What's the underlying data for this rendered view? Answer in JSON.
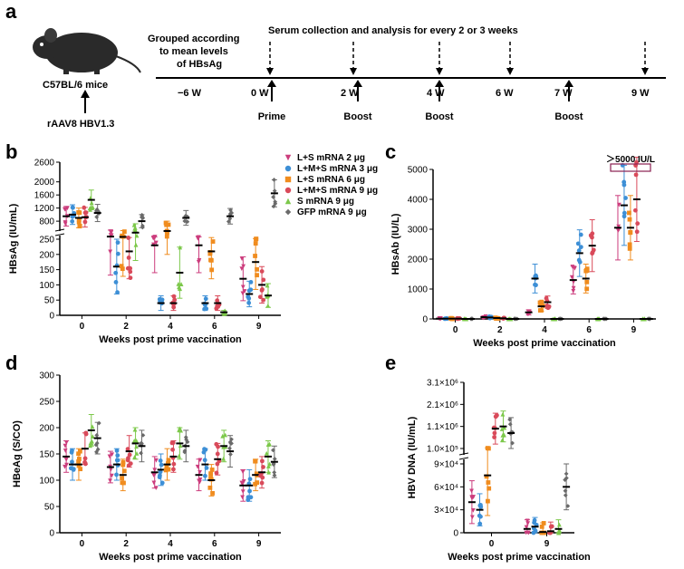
{
  "panels": {
    "a": "a",
    "b": "b",
    "c": "c",
    "d": "d",
    "e": "e"
  },
  "timeline": {
    "mouse": "C57BL/6 mice",
    "virus": "rAAV8 HBV1.3",
    "grouped": [
      "Grouped according",
      "to mean levels",
      "of HBsAg"
    ],
    "serum": "Serum collection and analysis for every 2 or 3 weeks",
    "weeks": [
      "−6 W",
      "0 W",
      "2 W",
      "4 W",
      "6 W",
      "7 W",
      "9 W"
    ],
    "events": [
      "Prime",
      "Boost",
      "Boost",
      "Boost"
    ]
  },
  "legend": [
    "L+S mRNA 2 μg",
    "L+M+S mRNA 3 μg",
    "L+S mRNA 6 μg",
    "L+M+S mRNA 9 μg",
    "S mRNA 9 μg",
    "GFP mRNA 9 μg"
  ],
  "colors": [
    "#cc3d7d",
    "#3d8fd6",
    "#f08c1e",
    "#d94a5a",
    "#7cc84a",
    "#6a6a6a"
  ],
  "chart_data": [
    {
      "panel": "b",
      "type": "scatter",
      "ylabel": "HBsAg (IU/mL)",
      "xlabel": "Weeks post prime vaccination",
      "categories": [
        "0",
        "2",
        "4",
        "6",
        "9"
      ],
      "yticks": [
        "0",
        "50",
        "100",
        "150",
        "200",
        "250",
        "800",
        "1200",
        "1600",
        "2000",
        "2600"
      ],
      "series": [
        {
          "name": "L+S mRNA 2 μg",
          "values": [
            950,
            330,
            230,
            230,
            120
          ]
        },
        {
          "name": "L+M+S mRNA 3 μg",
          "values": [
            1000,
            160,
            40,
            40,
            70
          ]
        },
        {
          "name": "L+S mRNA 6 μg",
          "values": [
            900,
            320,
            500,
            210,
            175
          ]
        },
        {
          "name": "L+M+S mRNA 9 μg",
          "values": [
            920,
            210,
            40,
            40,
            100
          ]
        },
        {
          "name": "S mRNA 9 μg",
          "values": [
            1450,
            450,
            140,
            10,
            65
          ]
        },
        {
          "name": "GFP mRNA 9 μg",
          "values": [
            1050,
            800,
            900,
            950,
            1650
          ]
        }
      ]
    },
    {
      "panel": "c",
      "type": "scatter",
      "ylabel": "HBsAb (IU/L)",
      "xlabel": "Weeks post prime vaccination",
      "categories": [
        "0",
        "2",
        "4",
        "6",
        "9"
      ],
      "yticks": [
        "0",
        "1000",
        "2000",
        "3000",
        "4000",
        "5000"
      ],
      "annotation": "＞5000 IU/L",
      "series": [
        {
          "name": "L+S mRNA 2 μg",
          "values": [
            10,
            60,
            220,
            1300,
            3050
          ]
        },
        {
          "name": "L+M+S mRNA 3 μg",
          "values": [
            10,
            50,
            1350,
            2200,
            3800
          ]
        },
        {
          "name": "L+S mRNA 6 μg",
          "values": [
            10,
            30,
            420,
            1350,
            3050
          ]
        },
        {
          "name": "L+M+S mRNA 9 μg",
          "values": [
            10,
            20,
            560,
            2450,
            4000
          ]
        },
        {
          "name": "S mRNA 9 μg",
          "values": [
            0,
            0,
            0,
            0,
            0
          ]
        },
        {
          "name": "GFP mRNA 9 μg",
          "values": [
            0,
            0,
            0,
            0,
            0
          ]
        }
      ]
    },
    {
      "panel": "d",
      "type": "scatter",
      "ylabel": "HBeAg (S/CO)",
      "xlabel": "Weeks post prime vaccination",
      "categories": [
        "0",
        "2",
        "4",
        "6",
        "9"
      ],
      "yticks": [
        "0",
        "50",
        "100",
        "150",
        "200",
        "250",
        "300"
      ],
      "series": [
        {
          "name": "L+S mRNA 2 μg",
          "values": [
            145,
            125,
            115,
            110,
            90
          ]
        },
        {
          "name": "L+M+S mRNA 3 μg",
          "values": [
            130,
            130,
            120,
            130,
            90
          ]
        },
        {
          "name": "L+S mRNA 6 μg",
          "values": [
            130,
            110,
            130,
            100,
            110
          ]
        },
        {
          "name": "L+M+S mRNA 9 μg",
          "values": [
            160,
            155,
            145,
            140,
            115
          ]
        },
        {
          "name": "S mRNA 9 μg",
          "values": [
            195,
            170,
            170,
            165,
            145
          ]
        },
        {
          "name": "GFP mRNA 9 μg",
          "values": [
            180,
            165,
            165,
            155,
            135
          ]
        }
      ]
    },
    {
      "panel": "e",
      "type": "scatter",
      "ylabel": "HBV DNA (IU/mL)",
      "xlabel": "Weeks post prime vaccination",
      "categories": [
        "0",
        "9"
      ],
      "yticks": [
        "0",
        "3×10⁴",
        "6×10⁴",
        "9×10⁴",
        "1.0×10⁵",
        "1.1×10⁶",
        "2.1×10⁶",
        "3.1×10⁶"
      ],
      "series": [
        {
          "name": "L+S mRNA 2 μg",
          "values": [
            40000,
            5000
          ]
        },
        {
          "name": "L+M+S mRNA 3 μg",
          "values": [
            30000,
            8000
          ]
        },
        {
          "name": "L+S mRNA 6 μg",
          "values": [
            75000,
            1000
          ]
        },
        {
          "name": "L+M+S mRNA 9 μg",
          "values": [
            1000000,
            2000
          ]
        },
        {
          "name": "S mRNA 9 μg",
          "values": [
            1100000,
            5000
          ]
        },
        {
          "name": "GFP mRNA 9 μg",
          "values": [
            800000,
            60000
          ]
        }
      ]
    }
  ]
}
